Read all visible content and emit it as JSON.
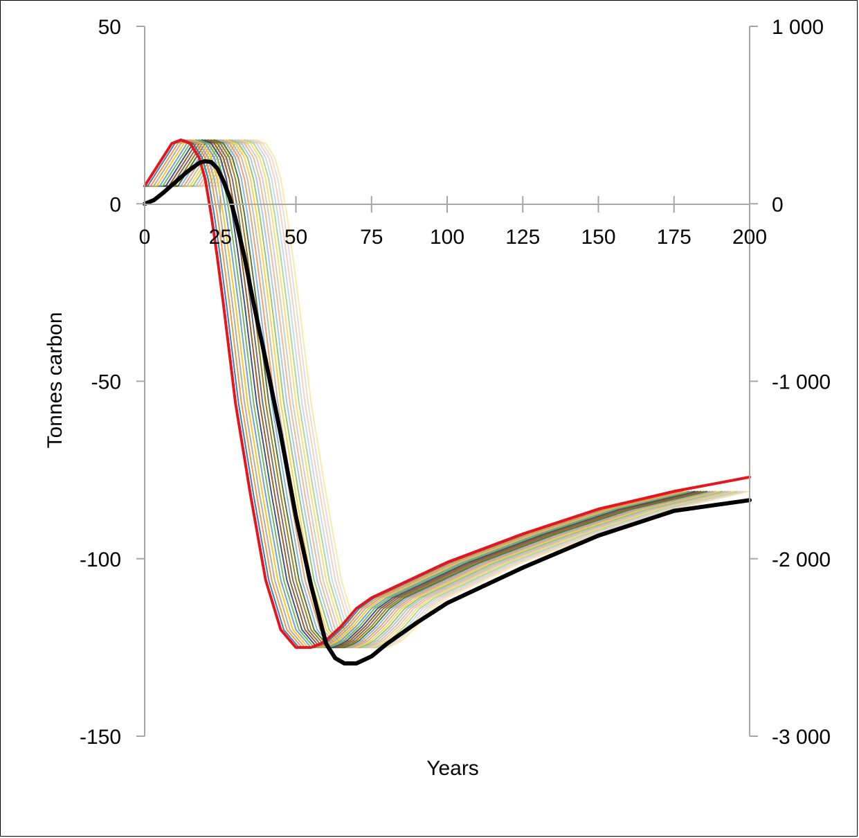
{
  "chart_data": {
    "type": "line",
    "title": "",
    "xlabel": "Years",
    "ylabel": "Tonnes carbon",
    "xlim": [
      0,
      200
    ],
    "ylim_left": [
      -150,
      50
    ],
    "ylim_right": [
      -3000,
      1000
    ],
    "x_ticks": [
      "0",
      "25",
      "50",
      "75",
      "100",
      "125",
      "150",
      "175",
      "200"
    ],
    "y_ticks_left": [
      "50",
      "0",
      "-50",
      "-100",
      "-150"
    ],
    "y_ticks_right": [
      "1 000",
      "0",
      "-1 000",
      "-2 000",
      "-3 000"
    ],
    "grid": false,
    "legend": "none",
    "colors": {
      "highlight": "#e8141c",
      "cumulative": "#000000",
      "axis": "#a6a6a6",
      "palette": [
        "#1f77b4",
        "#f28e2b",
        "#a5a5a5",
        "#ffc000",
        "#5b9bd5",
        "#70ad47",
        "#264478",
        "#9e480e",
        "#636363",
        "#997300",
        "#43682b",
        "#7cafdd",
        "#f1975a",
        "#b7b7b7",
        "#ffcd33",
        "#8cc168",
        "#9dc3e6",
        "#f4b183",
        "#c9c9c9",
        "#ffd966",
        "#a9d18e",
        "#bdd7ee",
        "#f8cbad",
        "#dbdbdb",
        "#ffe699"
      ]
    },
    "series": [
      {
        "axis": "left",
        "style": "highlight",
        "x": [
          0,
          3,
          6,
          9,
          12,
          15,
          18,
          20,
          22,
          24,
          26,
          28,
          30,
          35,
          40,
          45,
          50,
          55,
          58,
          60,
          65,
          70,
          75,
          80,
          90,
          100,
          125,
          150,
          175,
          200
        ],
        "y": [
          5,
          9,
          13,
          17,
          18,
          17,
          13,
          7,
          -3,
          -15,
          -28,
          -42,
          -56,
          -82,
          -106,
          -120,
          -125,
          -125,
          -124,
          -123,
          -119,
          -114,
          -111,
          -109,
          -105,
          -101,
          -93,
          -86,
          -81,
          -77
        ]
      },
      {
        "axis": "right",
        "style": "cumulative",
        "x": [
          0,
          3,
          6,
          10,
          14,
          18,
          20,
          22,
          24,
          26,
          28,
          30,
          33,
          36,
          40,
          45,
          50,
          55,
          60,
          63,
          66,
          70,
          75,
          80,
          90,
          100,
          125,
          150,
          175,
          200
        ],
        "y": [
          0,
          20,
          60,
          120,
          180,
          230,
          240,
          235,
          200,
          130,
          40,
          -80,
          -300,
          -560,
          -880,
          -1300,
          -1760,
          -2150,
          -2480,
          -2560,
          -2590,
          -2590,
          -2550,
          -2480,
          -2360,
          -2250,
          -2050,
          -1870,
          -1730,
          -1670
        ]
      }
    ],
    "cohort_series": {
      "axis": "left",
      "count": 25,
      "shift_step_years": 1,
      "x": [
        0,
        3,
        6,
        9,
        12,
        15,
        18,
        20,
        22,
        24,
        26,
        28,
        30,
        35,
        40,
        45,
        50,
        55,
        58,
        60,
        65,
        70,
        75,
        80,
        90,
        100,
        125,
        150,
        175,
        200
      ],
      "y": [
        5,
        9,
        13,
        17,
        18,
        17,
        13,
        7,
        -3,
        -15,
        -28,
        -42,
        -56,
        -82,
        -106,
        -120,
        -125,
        -125,
        -124,
        -123,
        -119,
        -114,
        -111,
        -109,
        -105,
        -101,
        -93,
        -86,
        -81,
        -77
      ]
    }
  }
}
